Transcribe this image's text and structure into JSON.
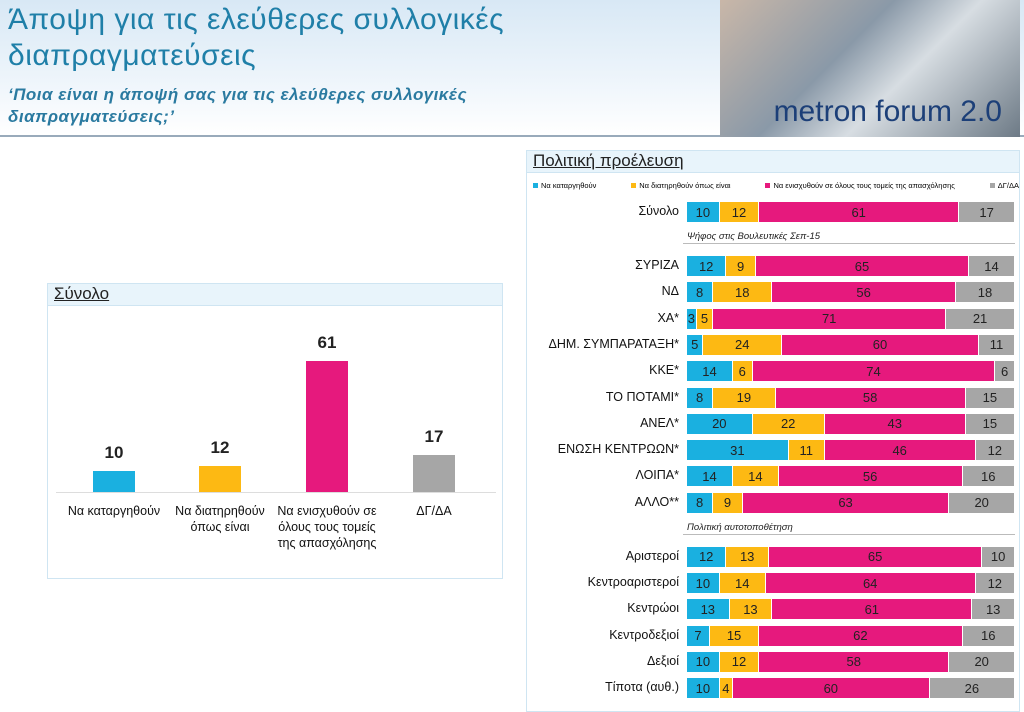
{
  "header": {
    "title": "Άποψη για τις ελεύθερες συλλογικές διαπραγματεύσεις",
    "subtitle": "‘Ποια είναι η άποψή σας για τις ελεύθερες συλλογικές διαπραγματεύσεις;’",
    "logo": "metron forum 2.0"
  },
  "chart_data": [
    {
      "type": "bar",
      "title": "Σύνολο",
      "categories": [
        "Να καταργηθούν",
        "Να διατηρηθούν όπως είναι",
        "Να ενισχυθούν σε όλους τους τομείς της απασχόλησης",
        "ΔΓ/ΔΑ"
      ],
      "values": [
        10,
        12,
        61,
        17
      ],
      "colors": [
        "#1ab0e0",
        "#fdb913",
        "#e6197d",
        "#a6a6a6"
      ],
      "ylim": [
        0,
        70
      ]
    },
    {
      "type": "stacked_bar",
      "title": "Πολιτική προέλευση",
      "categories": [
        "Σύνολο",
        "ΣΥΡΙΖΑ",
        "ΝΔ",
        "ΧΑ*",
        "ΔΗΜ. ΣΥΜΠΑΡΑΤΑΞΗ*",
        "ΚΚΕ*",
        "ΤΟ ΠΟΤΑΜΙ*",
        "ΑΝΕΛ*",
        "ΕΝΩΣΗ ΚΕΝΤΡΩΩΝ*",
        "ΛΟΙΠΑ*",
        "ΑΛΛΟ**",
        "Αριστεροί",
        "Κεντροαριστεροί",
        "Κεντρώοι",
        "Κεντροδεξιοί",
        "Δεξιοί",
        "Τίποτα (αυθ.)"
      ],
      "series": [
        {
          "name": "Να καταργηθούν",
          "color": "#1ab0e0",
          "values": [
            10,
            12,
            8,
            3,
            5,
            14,
            8,
            20,
            31,
            14,
            8,
            12,
            10,
            13,
            7,
            10,
            10
          ]
        },
        {
          "name": "Να διατηρηθούν όπως είναι",
          "color": "#fdb913",
          "values": [
            12,
            9,
            18,
            5,
            24,
            6,
            19,
            22,
            11,
            14,
            9,
            13,
            14,
            13,
            15,
            12,
            4
          ]
        },
        {
          "name": "Να ενισχυθούν σε όλους τους τομείς της απασχόλησης",
          "color": "#e6197d",
          "values": [
            61,
            65,
            56,
            71,
            60,
            74,
            58,
            43,
            46,
            56,
            63,
            65,
            64,
            61,
            62,
            58,
            60
          ]
        },
        {
          "name": "ΔΓ/ΔΑ",
          "color": "#a6a6a6",
          "values": [
            17,
            14,
            18,
            21,
            11,
            6,
            15,
            15,
            12,
            16,
            20,
            10,
            12,
            13,
            16,
            20,
            26
          ]
        }
      ],
      "sections": [
        {
          "text": "Ψήφος στις Βουλευτικές Σεπ-15",
          "category": "ΣΥΡΙΖΑ"
        },
        {
          "text": "Πολιτική αυτοτοποθέτηση",
          "category": "Αριστεροί"
        }
      ],
      "xlim": [
        0,
        100
      ]
    }
  ]
}
